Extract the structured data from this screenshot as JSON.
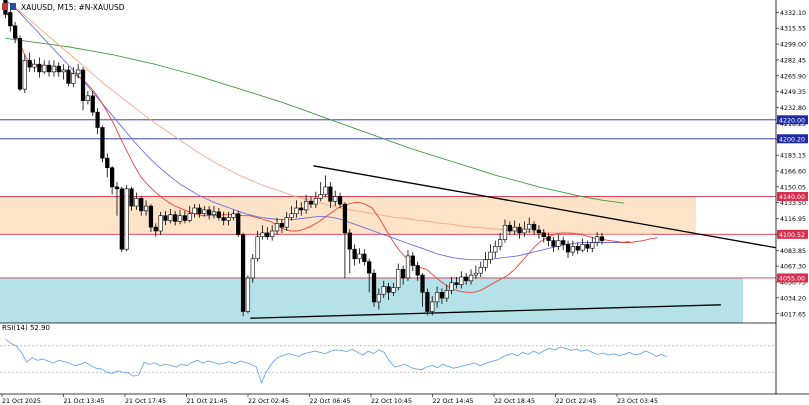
{
  "header": {
    "symbol_text": "XAUUSD, M15:  #N-XAUUSD",
    "flag_icon": "flag-icon"
  },
  "indicator": {
    "label": "RSI(14) 52.90",
    "level_high": 70,
    "level_low": 30,
    "scale_max": 100,
    "scale_min": 0
  },
  "colors": {
    "resistance_zone": "#fde4c8",
    "support_zone": "#b5e1e8",
    "red_level": "#d9304f",
    "blue_level": "#1f2aa8",
    "ma_fast": "#e8453c",
    "ma_mid": "#6b6fe0",
    "ma_slow_orange": "#f5a986",
    "ma_slow_green": "#3f9c3f",
    "rsi_line": "#6aa6ee",
    "trendline": "#000000"
  },
  "chart_data": {
    "type": "candlestick",
    "symbol": "XAUUSD",
    "timeframe": "M15",
    "y_axis_ticks": [
      "4332.10",
      "4315.55",
      "4299.00",
      "4282.45",
      "4265.90",
      "4249.35",
      "4232.80",
      "4216.25",
      "4199.70",
      "4183.15",
      "4166.60",
      "4150.05",
      "4133.50",
      "4116.95",
      "4100.40",
      "4083.85",
      "4067.30",
      "4050.75",
      "4034.20",
      "4017.65"
    ],
    "ylim": [
      4008,
      4345
    ],
    "x_axis_ticks": [
      "21 Oct 2025",
      "21 Oct 13:45",
      "21 Oct 17:45",
      "21 Oct 21:45",
      "22 Oct 02:45",
      "22 Oct 06:45",
      "22 Oct 10:45",
      "22 Oct 14:45",
      "22 Oct 18:45",
      "22 Oct 22:45",
      "23 Oct 03:45"
    ],
    "price_labels": [
      {
        "text": "4220.00",
        "kind": "blue"
      },
      {
        "text": "4200.20",
        "kind": "blue"
      },
      {
        "text": "4140.00",
        "kind": "red"
      },
      {
        "text": "4100.52",
        "kind": "red"
      },
      {
        "text": "4055.00",
        "kind": "red"
      }
    ],
    "levels": [
      {
        "price": 4220.0,
        "kind": "blue"
      },
      {
        "price": 4200.2,
        "kind": "blue"
      },
      {
        "price": 4140.0,
        "kind": "red"
      },
      {
        "price": 4100.52,
        "kind": "red"
      },
      {
        "price": 4055.0,
        "kind": "red"
      }
    ],
    "zones": [
      {
        "name": "resistance",
        "top": 4140.0,
        "bottom": 4100.52
      },
      {
        "name": "support",
        "top": 4055.0,
        "bottom": 4008.0
      }
    ],
    "candles": [
      [
        4345,
        4330,
        4348,
        4326
      ],
      [
        4332,
        4318,
        4336,
        4312
      ],
      [
        4318,
        4305,
        4322,
        4300
      ],
      [
        4305,
        4252,
        4308,
        4250
      ],
      [
        4252,
        4282,
        4288,
        4248
      ],
      [
        4282,
        4275,
        4290,
        4270
      ],
      [
        4275,
        4278,
        4283,
        4270
      ],
      [
        4278,
        4270,
        4285,
        4264
      ],
      [
        4270,
        4277,
        4282,
        4268
      ],
      [
        4277,
        4270,
        4282,
        4265
      ],
      [
        4270,
        4276,
        4282,
        4265
      ],
      [
        4276,
        4270,
        4280,
        4265
      ],
      [
        4270,
        4272,
        4278,
        4262
      ],
      [
        4272,
        4258,
        4276,
        4255
      ],
      [
        4258,
        4268,
        4275,
        4254
      ],
      [
        4268,
        4272,
        4278,
        4263
      ],
      [
        4272,
        4240,
        4275,
        4230
      ],
      [
        4240,
        4245,
        4250,
        4236
      ],
      [
        4245,
        4228,
        4250,
        4224
      ],
      [
        4228,
        4212,
        4232,
        4205
      ],
      [
        4212,
        4180,
        4214,
        4176
      ],
      [
        4180,
        4170,
        4185,
        4160
      ],
      [
        4170,
        4150,
        4172,
        4142
      ],
      [
        4150,
        4148,
        4155,
        4120
      ],
      [
        4148,
        4085,
        4150,
        4082
      ],
      [
        4085,
        4148,
        4152,
        4083
      ],
      [
        4148,
        4130,
        4150,
        4125
      ],
      [
        4130,
        4138,
        4144,
        4126
      ],
      [
        4138,
        4125,
        4140,
        4120
      ],
      [
        4125,
        4130,
        4136,
        4120
      ],
      [
        4130,
        4108,
        4132,
        4103
      ],
      [
        4108,
        4104,
        4112,
        4098
      ],
      [
        4104,
        4120,
        4124,
        4100
      ],
      [
        4120,
        4115,
        4125,
        4110
      ],
      [
        4115,
        4121,
        4127,
        4112
      ],
      [
        4121,
        4114,
        4125,
        4110
      ],
      [
        4114,
        4120,
        4126,
        4111
      ],
      [
        4120,
        4115,
        4125,
        4112
      ],
      [
        4115,
        4122,
        4130,
        4113
      ],
      [
        4122,
        4128,
        4132,
        4118
      ],
      [
        4128,
        4122,
        4132,
        4118
      ],
      [
        4122,
        4126,
        4130,
        4119
      ],
      [
        4126,
        4121,
        4130,
        4116
      ],
      [
        4121,
        4124,
        4130,
        4117
      ],
      [
        4124,
        4118,
        4128,
        4115
      ],
      [
        4118,
        4115,
        4124,
        4110
      ],
      [
        4115,
        4118,
        4124,
        4110
      ],
      [
        4118,
        4122,
        4126,
        4115
      ],
      [
        4122,
        4100,
        4125,
        4098
      ],
      [
        4100,
        4020,
        4102,
        4015
      ],
      [
        4020,
        4055,
        4058,
        4018
      ],
      [
        4055,
        4075,
        4080,
        4050
      ],
      [
        4075,
        4098,
        4104,
        4072
      ],
      [
        4098,
        4102,
        4110,
        4095
      ],
      [
        4102,
        4098,
        4108,
        4095
      ],
      [
        4098,
        4104,
        4110,
        4094
      ],
      [
        4104,
        4112,
        4118,
        4100
      ],
      [
        4112,
        4108,
        4116,
        4102
      ],
      [
        4108,
        4118,
        4124,
        4104
      ],
      [
        4118,
        4122,
        4130,
        4115
      ],
      [
        4122,
        4128,
        4136,
        4118
      ],
      [
        4128,
        4126,
        4134,
        4120
      ],
      [
        4126,
        4135,
        4142,
        4122
      ],
      [
        4135,
        4132,
        4140,
        4128
      ],
      [
        4132,
        4138,
        4145,
        4128
      ],
      [
        4138,
        4142,
        4155,
        4135
      ],
      [
        4142,
        4150,
        4162,
        4140
      ],
      [
        4150,
        4135,
        4155,
        4128
      ],
      [
        4135,
        4140,
        4146,
        4130
      ],
      [
        4140,
        4132,
        4144,
        4128
      ],
      [
        4132,
        4102,
        4134,
        4055
      ],
      [
        4102,
        4085,
        4106,
        4060
      ],
      [
        4085,
        4075,
        4090,
        4068
      ],
      [
        4075,
        4080,
        4086,
        4070
      ],
      [
        4080,
        4072,
        4085,
        4068
      ],
      [
        4072,
        4060,
        4075,
        4040
      ],
      [
        4060,
        4030,
        4064,
        4025
      ],
      [
        4030,
        4038,
        4044,
        4022
      ],
      [
        4038,
        4046,
        4052,
        4034
      ],
      [
        4046,
        4040,
        4050,
        4032
      ],
      [
        4040,
        4045,
        4050,
        4036
      ],
      [
        4045,
        4064,
        4070,
        4042
      ],
      [
        4064,
        4055,
        4068,
        4048
      ],
      [
        4055,
        4078,
        4084,
        4052
      ],
      [
        4078,
        4068,
        4082,
        4062
      ],
      [
        4068,
        4058,
        4072,
        4052
      ],
      [
        4058,
        4040,
        4060,
        4025
      ],
      [
        4040,
        4020,
        4044,
        4016
      ],
      [
        4020,
        4030,
        4036,
        4016
      ],
      [
        4030,
        4040,
        4046,
        4024
      ],
      [
        4040,
        4034,
        4044,
        4028
      ],
      [
        4034,
        4042,
        4048,
        4030
      ],
      [
        4042,
        4050,
        4056,
        4038
      ],
      [
        4050,
        4048,
        4056,
        4044
      ],
      [
        4048,
        4056,
        4062,
        4044
      ],
      [
        4056,
        4052,
        4060,
        4048
      ],
      [
        4052,
        4058,
        4064,
        4048
      ],
      [
        4058,
        4060,
        4068,
        4054
      ],
      [
        4060,
        4066,
        4072,
        4056
      ],
      [
        4066,
        4074,
        4082,
        4062
      ],
      [
        4074,
        4082,
        4090,
        4070
      ],
      [
        4082,
        4088,
        4094,
        4076
      ],
      [
        4088,
        4095,
        4102,
        4084
      ],
      [
        4095,
        4110,
        4116,
        4092
      ],
      [
        4110,
        4104,
        4114,
        4100
      ],
      [
        4104,
        4108,
        4115,
        4100
      ],
      [
        4108,
        4102,
        4112,
        4096
      ],
      [
        4102,
        4106,
        4114,
        4098
      ],
      [
        4106,
        4111,
        4118,
        4102
      ],
      [
        4111,
        4105,
        4114,
        4100
      ],
      [
        4105,
        4102,
        4110,
        4096
      ],
      [
        4102,
        4098,
        4106,
        4092
      ],
      [
        4098,
        4094,
        4102,
        4088
      ],
      [
        4094,
        4088,
        4098,
        4082
      ],
      [
        4088,
        4094,
        4100,
        4084
      ],
      [
        4094,
        4090,
        4098,
        4084
      ],
      [
        4090,
        4082,
        4094,
        4076
      ],
      [
        4082,
        4088,
        4094,
        4078
      ],
      [
        4088,
        4084,
        4092,
        4080
      ],
      [
        4084,
        4090,
        4096,
        4082
      ],
      [
        4090,
        4086,
        4094,
        4082
      ],
      [
        4086,
        4092,
        4098,
        4082
      ],
      [
        4092,
        4098,
        4103,
        4088
      ],
      [
        4098,
        4094,
        4102,
        4090
      ]
    ],
    "ma_fast": [
      4335,
      4320,
      4302,
      4285,
      4278,
      4276,
      4275,
      4273,
      4272,
      4271,
      4268,
      4264,
      4258,
      4250,
      4240,
      4228,
      4215,
      4200,
      4186,
      4172,
      4160,
      4152,
      4145,
      4139,
      4134,
      4130,
      4127,
      4124,
      4122,
      4120,
      4120,
      4120,
      4121,
      4121,
      4121,
      4120,
      4120,
      4118,
      4116,
      4114,
      4110,
      4106,
      4104,
      4104,
      4106,
      4109,
      4113,
      4118,
      4123,
      4128,
      4131,
      4133,
      4134,
      4132,
      4128,
      4118,
      4106,
      4094,
      4084,
      4076,
      4070,
      4066,
      4064,
      4058,
      4052,
      4047,
      4043,
      4041,
      4040,
      4040,
      4042,
      4046,
      4050,
      4054,
      4058,
      4064,
      4072,
      4080,
      4088,
      4094,
      4098,
      4101,
      4102,
      4102,
      4101,
      4100,
      4098,
      4096,
      4095,
      4094,
      4093,
      4092,
      4092,
      4093,
      4094,
      4096,
      4097
    ],
    "ma_mid": [
      4345,
      4338,
      4330,
      4321,
      4312,
      4303,
      4294,
      4285,
      4276,
      4267,
      4258,
      4248,
      4238,
      4228,
      4218,
      4208,
      4198,
      4189,
      4180,
      4172,
      4165,
      4158,
      4152,
      4147,
      4142,
      4138,
      4134,
      4131,
      4128,
      4125,
      4122,
      4120,
      4118,
      4117,
      4116,
      4116,
      4116,
      4117,
      4118,
      4119,
      4119,
      4118,
      4116,
      4113,
      4110,
      4107,
      4104,
      4101,
      4098,
      4095,
      4092,
      4089,
      4086,
      4083,
      4080,
      4078,
      4076,
      4075,
      4074,
      4074,
      4074,
      4075,
      4076,
      4077,
      4078,
      4080,
      4082,
      4084,
      4086,
      4088,
      4090,
      4091,
      4092,
      4092,
      4092,
      4092,
      4092,
      4092,
      4093
    ],
    "ma_slow_orange": [
      4345,
      4336,
      4326,
      4316,
      4306,
      4296,
      4286,
      4276,
      4266,
      4256,
      4247,
      4238,
      4229,
      4220,
      4212,
      4204,
      4196,
      4188,
      4181,
      4174,
      4168,
      4162,
      4157,
      4152,
      4148,
      4144,
      4140,
      4137,
      4134,
      4131,
      4128,
      4126,
      4124,
      4122,
      4120,
      4118,
      4117,
      4115,
      4114,
      4112,
      4111,
      4109,
      4108,
      4107,
      4106,
      4105,
      4104,
      4103,
      4103,
      4102,
      4102,
      4102,
      4101,
      4101,
      4101,
      4101,
      4101,
      4101,
      4101
    ],
    "ma_slow_green": [
      4305,
      4302,
      4299,
      4296,
      4292,
      4288,
      4283,
      4278,
      4272,
      4266,
      4259,
      4252,
      4245,
      4238,
      4230,
      4222,
      4214,
      4206,
      4198,
      4190,
      4183,
      4176,
      4169,
      4162,
      4156,
      4150,
      4145,
      4140,
      4136,
      4133
    ],
    "trendlines": [
      {
        "name": "descending-resistance",
        "from": {
          "bar": 64,
          "price": 4172
        },
        "to": {
          "bar": 160,
          "price": 4086
        }
      },
      {
        "name": "rising-support",
        "from": {
          "bar": 51,
          "price": 4013
        },
        "to": {
          "bar": 148,
          "price": 4027
        }
      }
    ],
    "rsi": [
      80,
      74,
      70,
      60,
      45,
      52,
      48,
      50,
      47,
      44,
      48,
      46,
      44,
      40,
      42,
      45,
      40,
      36,
      35,
      30,
      28,
      32,
      30,
      29,
      24,
      26,
      45,
      42,
      44,
      40,
      42,
      40,
      38,
      42,
      40,
      45,
      48,
      44,
      47,
      45,
      42,
      44,
      46,
      43,
      47,
      45,
      42,
      38,
      14,
      32,
      44,
      52,
      55,
      58,
      56,
      54,
      58,
      60,
      62,
      60,
      58,
      62,
      64,
      63,
      61,
      65,
      60,
      56,
      62,
      58,
      64,
      60,
      46,
      38,
      40,
      42,
      37,
      35,
      34,
      38,
      40,
      37,
      42,
      39,
      36,
      38,
      40,
      42,
      44,
      40,
      43,
      46,
      48,
      52,
      56,
      58,
      55,
      60,
      57,
      62,
      58,
      63,
      66,
      64,
      68,
      66,
      63,
      65,
      62,
      64,
      60,
      57,
      59,
      56,
      58,
      55,
      57,
      60,
      56,
      58,
      62,
      59,
      54,
      57,
      53
    ]
  }
}
